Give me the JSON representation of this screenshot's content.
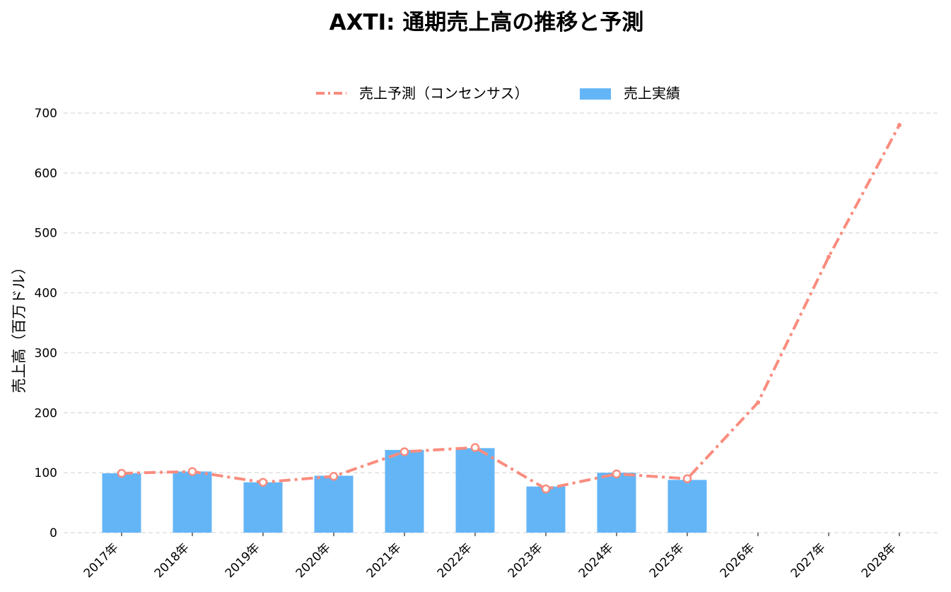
{
  "chart_data": {
    "type": "bar",
    "title": "AXTI: 通期売上高の推移と予測",
    "xlabel": "",
    "ylabel": "売上高（百万ドル）",
    "ylim": [
      0,
      700
    ],
    "yticks": [
      0,
      100,
      200,
      300,
      400,
      500,
      600,
      700
    ],
    "categories": [
      "2017年",
      "2018年",
      "2019年",
      "2020年",
      "2021年",
      "2022年",
      "2023年",
      "2024年",
      "2025年",
      "2026年",
      "2027年",
      "2028年"
    ],
    "series": [
      {
        "name": "売上実績",
        "kind": "bar",
        "color": "#64b5f6",
        "values": [
          99,
          102,
          84,
          95,
          138,
          141,
          77,
          100,
          88,
          null,
          null,
          null
        ]
      },
      {
        "name": "売上予測（コンセンサス）",
        "kind": "line",
        "color": "#fa8c7e",
        "values": [
          99,
          102,
          84,
          94,
          135,
          142,
          73,
          98,
          90,
          217,
          460,
          680
        ]
      }
    ],
    "grid": true,
    "legend_position": "top-center"
  }
}
